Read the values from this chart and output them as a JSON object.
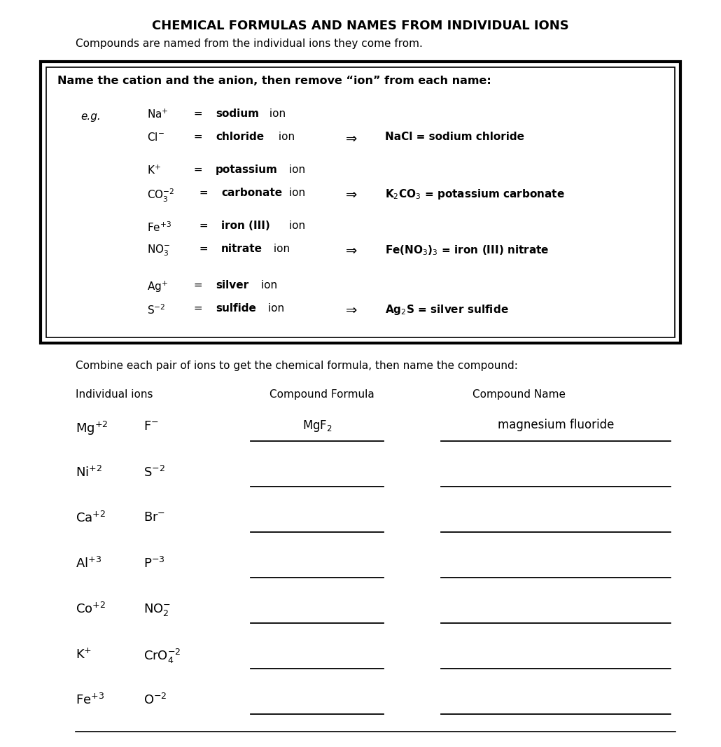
{
  "title": "CHEMICAL FORMULAS AND NAMES FROM INDIVIDUAL IONS",
  "subtitle": "Compounds are named from the individual ions they come from.",
  "bg_color": "#ffffff",
  "text_color": "#000000",
  "box_instruction": "Name the cation and the anion, then remove “ion” from each name:",
  "table_instruction": "Combine each pair of ions to get the chemical formula, then name the compound:",
  "col_headers": [
    "Individual ions",
    "Compound Formula",
    "Compound Name"
  ],
  "rows": [
    {
      "ions": [
        "Mg$^{+2}$",
        "F$^{-}$"
      ],
      "formula": "MgF$_2$",
      "name": "magnesium fluoride",
      "filled": true
    },
    {
      "ions": [
        "Ni$^{+2}$",
        "S$^{-2}$"
      ],
      "formula": "",
      "name": "",
      "filled": false
    },
    {
      "ions": [
        "Ca$^{+2}$",
        "Br$^{-}$"
      ],
      "formula": "",
      "name": "",
      "filled": false
    },
    {
      "ions": [
        "Al$^{+3}$",
        "P$^{-3}$"
      ],
      "formula": "",
      "name": "",
      "filled": false
    },
    {
      "ions": [
        "Co$^{+2}$",
        "NO$_2^{-}$"
      ],
      "formula": "",
      "name": "",
      "filled": false
    },
    {
      "ions": [
        "K$^{+}$",
        "CrO$_4^{-2}$"
      ],
      "formula": "",
      "name": "",
      "filled": false
    },
    {
      "ions": [
        "Fe$^{+3}$",
        "O$^{-2}$"
      ],
      "formula": "",
      "name": "",
      "filled": false
    }
  ]
}
